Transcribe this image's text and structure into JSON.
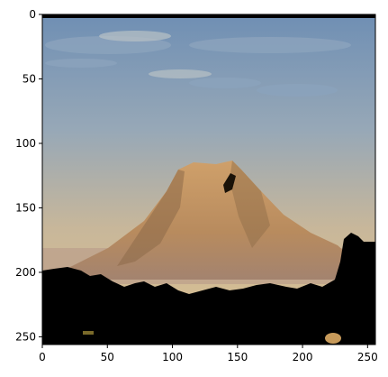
{
  "chart_data": {
    "type": "image",
    "image_content": "mountain-landscape-photo",
    "x": {
      "ticks": [
        0,
        50,
        100,
        150,
        200,
        250
      ],
      "tick_labels": [
        "0",
        "50",
        "100",
        "150",
        "200",
        "250"
      ],
      "range": [
        0,
        256
      ]
    },
    "y": {
      "ticks": [
        0,
        50,
        100,
        150,
        200,
        250
      ],
      "tick_labels": [
        "0",
        "50",
        "100",
        "150",
        "200",
        "250"
      ],
      "range": [
        0,
        256
      ],
      "inverted": true
    },
    "grid": false,
    "colors": {
      "sky_top": "#6f8fb4",
      "sky_mid": "#a9b0ae",
      "sky_bottom": "#d8be8f",
      "mountain_light": "#d2a56a",
      "mountain_dark": "#8c6a48",
      "haze": "#b79a88",
      "foreground": "#000000"
    }
  }
}
